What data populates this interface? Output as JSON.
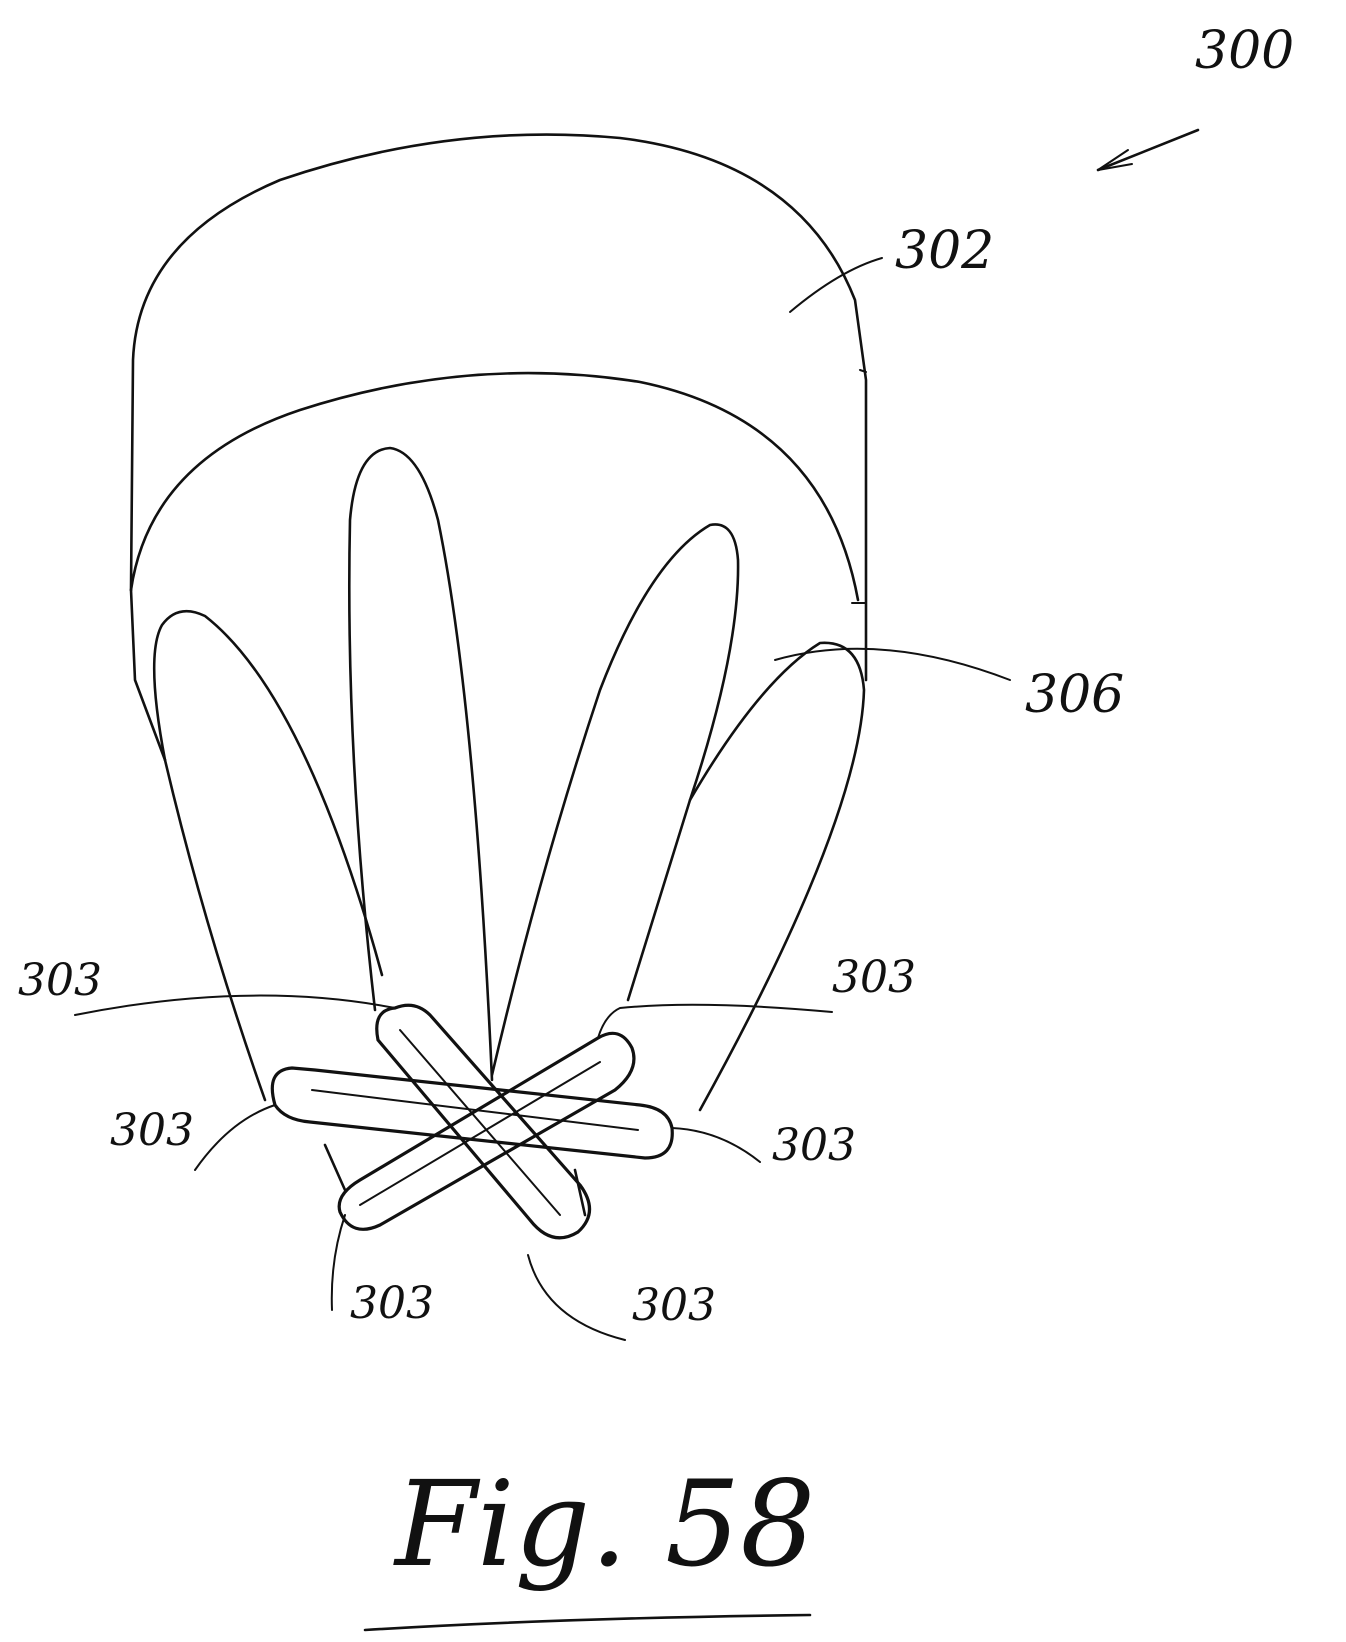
{
  "figure": {
    "caption": "Fig. 58",
    "assembly_label": "300",
    "labels": {
      "top_body": "302",
      "petal_region": "306",
      "tip_upper_left": "303",
      "tip_upper_right": "303",
      "tip_mid_left": "303",
      "tip_mid_right": "303",
      "tip_lower_left": "303",
      "tip_lower_right": "303"
    }
  }
}
